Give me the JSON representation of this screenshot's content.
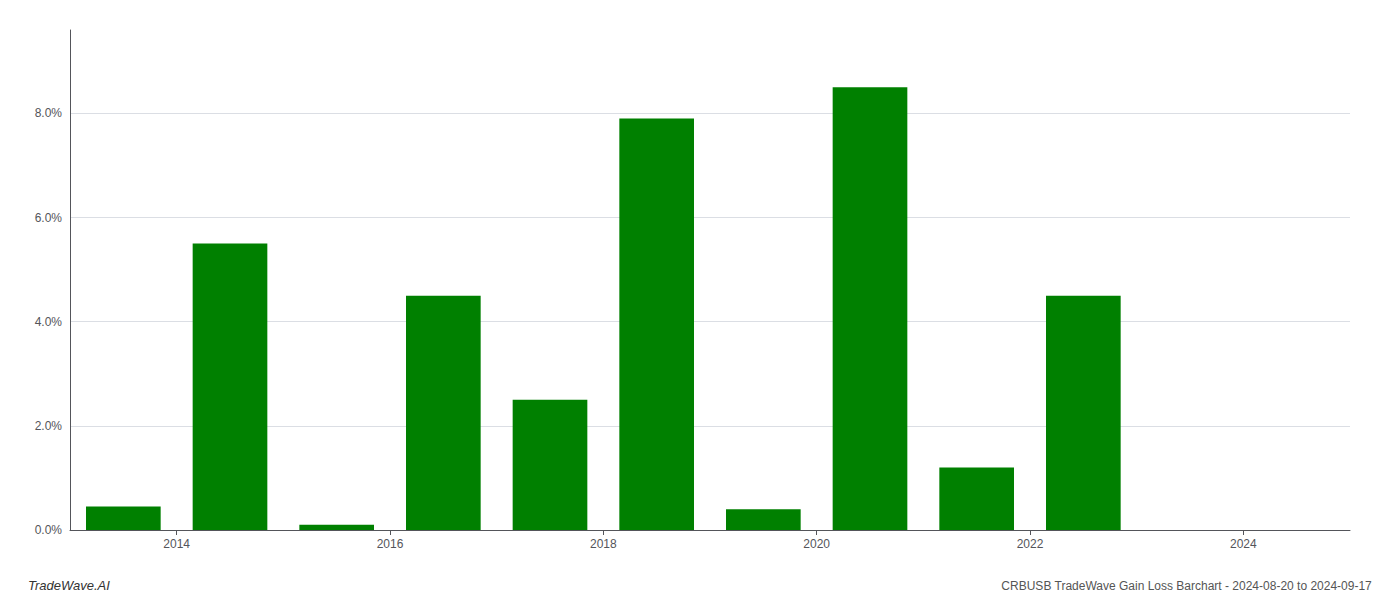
{
  "chart_data": {
    "type": "bar",
    "x": [
      2013.5,
      2014.5,
      2015.5,
      2016.5,
      2017.5,
      2018.5,
      2019.5,
      2020.5,
      2021.5,
      2022.5,
      2023.5
    ],
    "values": [
      0.0045,
      0.055,
      0.001,
      0.045,
      0.025,
      0.079,
      0.004,
      0.085,
      0.012,
      0.045,
      0.0
    ],
    "color": "#008000",
    "xlim": [
      2013.0,
      2025.0
    ],
    "xticks": [
      2014,
      2016,
      2018,
      2020,
      2022,
      2024
    ],
    "ylim": [
      0.0,
      0.096
    ],
    "yticks": [
      {
        "value": 0.0,
        "label": "0.0%"
      },
      {
        "value": 0.02,
        "label": "2.0%"
      },
      {
        "value": 0.04,
        "label": "4.0%"
      },
      {
        "value": 0.06,
        "label": "6.0%"
      },
      {
        "value": 0.08,
        "label": "8.0%"
      }
    ],
    "grid": true,
    "annotations": [
      "TradeWave.AI",
      "CRBUSB TradeWave Gain Loss Barchart - 2024-08-20 to 2024-09-17"
    ]
  }
}
